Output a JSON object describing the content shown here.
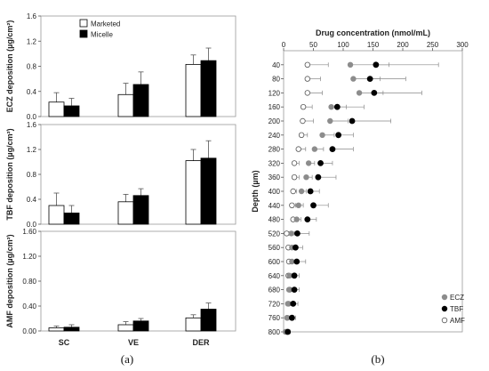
{
  "left_panel": {
    "categories": [
      "SC",
      "VE",
      "DER"
    ],
    "legend": [
      "Marketed",
      "Micelle"
    ],
    "panels": [
      {
        "ylabel": "ECZ deposition (µg/cm²)",
        "ylim": [
          0,
          1.6
        ],
        "ticks": [
          "0.0",
          "0.4",
          "0.8",
          "1.2",
          "1.6"
        ],
        "marketed": [
          0.23,
          0.35,
          0.83
        ],
        "marketed_err": [
          0.15,
          0.18,
          0.15
        ],
        "micelle": [
          0.17,
          0.51,
          0.89
        ],
        "micelle_err": [
          0.12,
          0.2,
          0.2
        ]
      },
      {
        "ylabel": "TBF deposition (µg/cm²)",
        "ylim": [
          0,
          1.6
        ],
        "ticks": [
          "0.0",
          "0.4",
          "0.8",
          "1.2",
          "1.6"
        ],
        "marketed": [
          0.3,
          0.36,
          1.02
        ],
        "marketed_err": [
          0.2,
          0.12,
          0.18
        ],
        "micelle": [
          0.18,
          0.46,
          1.06
        ],
        "micelle_err": [
          0.12,
          0.11,
          0.28
        ]
      },
      {
        "ylabel": "AMF deposition (µg/cm²)",
        "ylim": [
          0,
          1.6
        ],
        "ticks": [
          "0.00",
          "0.40",
          "0.80",
          "1.20",
          "1.60"
        ],
        "marketed": [
          0.05,
          0.1,
          0.21
        ],
        "marketed_err": [
          0.03,
          0.05,
          0.05
        ],
        "micelle": [
          0.06,
          0.16,
          0.35
        ],
        "micelle_err": [
          0.04,
          0.04,
          0.1
        ]
      }
    ]
  },
  "right_panel": {
    "xlabel": "Drug concentration (nmol/mL)",
    "ylabel": "Depth (µm)",
    "xlim": [
      0,
      300
    ],
    "xticks": [
      0,
      50,
      100,
      150,
      200,
      250,
      300
    ],
    "depths": [
      40,
      80,
      120,
      160,
      200,
      240,
      280,
      320,
      360,
      400,
      440,
      480,
      520,
      560,
      600,
      640,
      680,
      720,
      760,
      800
    ],
    "legend": [
      "ECZ",
      "TBF",
      "AMF"
    ],
    "ECZ": [
      112,
      117,
      127,
      80,
      78,
      65,
      52,
      42,
      38,
      30,
      25,
      22,
      13,
      14,
      14,
      10,
      9,
      7,
      6,
      3
    ],
    "ECZ_err": [
      65,
      45,
      40,
      25,
      30,
      20,
      15,
      10,
      10,
      8,
      8,
      7,
      5,
      5,
      5,
      4,
      4,
      3,
      3,
      2
    ],
    "TBF": [
      155,
      145,
      152,
      90,
      115,
      92,
      82,
      62,
      58,
      45,
      50,
      40,
      23,
      20,
      22,
      18,
      18,
      16,
      14,
      7
    ],
    "TBF_err": [
      105,
      60,
      80,
      45,
      65,
      25,
      35,
      20,
      30,
      15,
      25,
      15,
      20,
      12,
      15,
      8,
      8,
      8,
      6,
      4
    ],
    "AMF": [
      40,
      40,
      40,
      33,
      32,
      30,
      25,
      18,
      18,
      16,
      14,
      16,
      5,
      8,
      9,
      8,
      10,
      8,
      6,
      5
    ],
    "AMF_err": [
      35,
      22,
      25,
      15,
      18,
      10,
      12,
      8,
      8,
      6,
      6,
      6,
      4,
      4,
      4,
      3,
      3,
      3,
      3,
      2
    ]
  },
  "captions": [
    "(a)",
    "(b)"
  ],
  "colors": {
    "ECZ": "#8c8c8c",
    "TBF": "#000000",
    "AMF": "#ffffff",
    "marketed": "#ffffff",
    "micelle": "#000000"
  }
}
